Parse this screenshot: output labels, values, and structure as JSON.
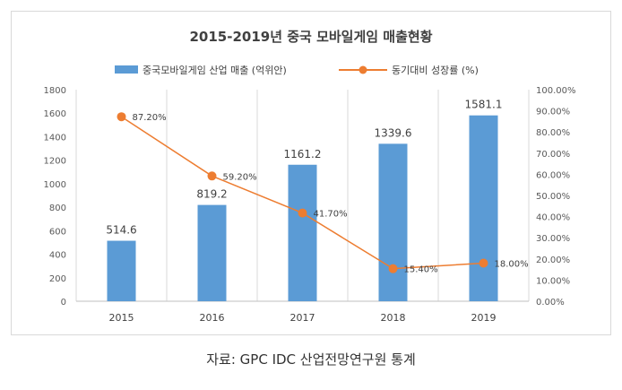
{
  "chart_data": {
    "type": "bar",
    "title": "2015-2019년 중국 모바일게임 매출현황",
    "categories": [
      "2015",
      "2016",
      "2017",
      "2018",
      "2019"
    ],
    "series": [
      {
        "name": "중국모바일게임 산업 매출 (억위안)",
        "type": "bar",
        "axis": "left",
        "color": "#5b9bd5",
        "values": [
          514.6,
          819.2,
          1161.2,
          1339.6,
          1581.1
        ],
        "labels": [
          "514.6",
          "819.2",
          "1161.2",
          "1339.6",
          "1581.1"
        ]
      },
      {
        "name": "동기대비 성장률 (%)",
        "type": "line",
        "axis": "right",
        "color": "#ed7d31",
        "values": [
          87.2,
          59.2,
          41.7,
          15.4,
          18.0
        ],
        "labels": [
          "87.20%",
          "59.20%",
          "41.70%",
          "15.40%",
          "18.00%"
        ]
      }
    ],
    "y_left": {
      "min": 0,
      "max": 1800,
      "step": 200,
      "ticks": [
        "0",
        "200",
        "400",
        "600",
        "800",
        "1000",
        "1200",
        "1400",
        "1600",
        "1800"
      ]
    },
    "y_right": {
      "min": 0,
      "max": 100,
      "step": 10,
      "ticks": [
        "0.00%",
        "10.00%",
        "20.00%",
        "30.00%",
        "40.00%",
        "50.00%",
        "60.00%",
        "70.00%",
        "80.00%",
        "90.00%",
        "100.00%"
      ]
    },
    "grid": "vertical",
    "legend": "top-center"
  },
  "caption": "자료: GPC IDC  산업전망연구원  통계"
}
